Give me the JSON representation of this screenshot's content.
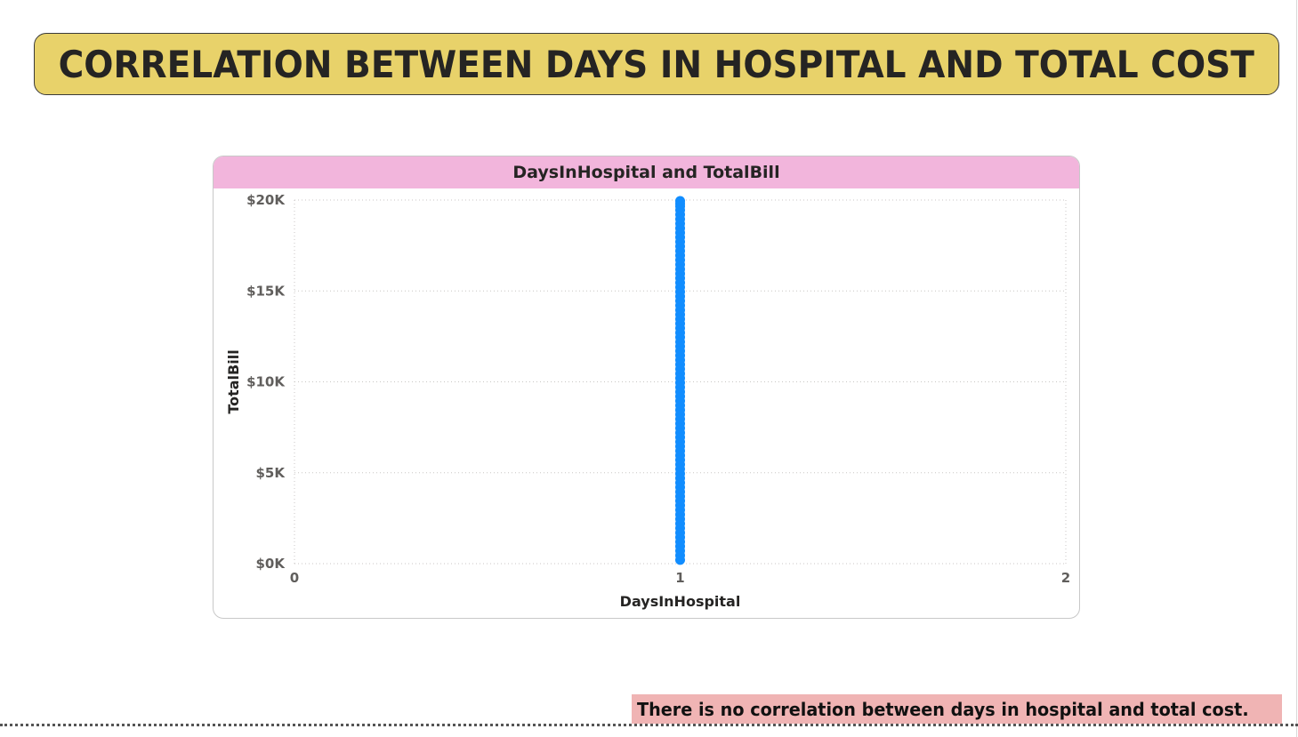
{
  "page": {
    "title": "CORRELATION BETWEEN DAYS IN HOSPITAL AND TOTAL COST",
    "note": "There is no correlation between days in hospital and total cost."
  },
  "colors": {
    "banner": "#e8d26a",
    "chart_header": "#f2b5dc",
    "note_bg": "#f0b4b4",
    "point": "#118dff"
  },
  "chart_data": {
    "type": "scatter",
    "title": "DaysInHospital and TotalBill",
    "xlabel": "DaysInHospital",
    "ylabel": "TotalBill",
    "xlim": [
      0,
      2
    ],
    "ylim": [
      0,
      20000
    ],
    "x_ticks": [
      0,
      1,
      2
    ],
    "x_tick_labels": [
      "0",
      "1",
      "2"
    ],
    "y_ticks": [
      0,
      5000,
      10000,
      15000,
      20000
    ],
    "y_tick_labels": [
      "$0K",
      "$5K",
      "$10K",
      "$15K",
      "$20K"
    ],
    "grid": true,
    "series": [
      {
        "name": "TotalBill",
        "x": [
          1,
          1,
          1,
          1,
          1,
          1,
          1,
          1,
          1,
          1,
          1,
          1,
          1,
          1,
          1,
          1,
          1,
          1,
          1,
          1,
          1,
          1,
          1,
          1,
          1,
          1,
          1,
          1,
          1,
          1,
          1,
          1,
          1,
          1,
          1,
          1,
          1,
          1,
          1,
          1,
          1,
          1,
          1,
          1,
          1,
          1,
          1,
          1,
          1,
          1,
          1,
          1,
          1,
          1,
          1,
          1,
          1,
          1,
          1,
          1,
          1,
          1,
          1,
          1,
          1,
          1,
          1,
          1,
          1,
          1,
          1,
          1,
          1,
          1,
          1,
          1,
          1,
          1,
          1,
          1,
          1
        ],
        "y": [
          200,
          450,
          700,
          950,
          1200,
          1450,
          1700,
          1950,
          2200,
          2450,
          2700,
          2950,
          3200,
          3450,
          3700,
          3950,
          4200,
          4450,
          4700,
          4950,
          5200,
          5450,
          5700,
          5950,
          6200,
          6450,
          6700,
          6950,
          7200,
          7450,
          7700,
          7950,
          8200,
          8450,
          8700,
          8950,
          9200,
          9450,
          9700,
          9950,
          10200,
          10450,
          10700,
          10950,
          11200,
          11450,
          11700,
          11950,
          12200,
          12450,
          12700,
          12950,
          13200,
          13450,
          13700,
          13950,
          14200,
          14450,
          14700,
          14950,
          15200,
          15450,
          15700,
          15950,
          16200,
          16450,
          16700,
          16950,
          17200,
          17450,
          17700,
          17950,
          18200,
          18450,
          18700,
          18950,
          19200,
          19450,
          19650,
          19800,
          19950
        ]
      }
    ]
  }
}
